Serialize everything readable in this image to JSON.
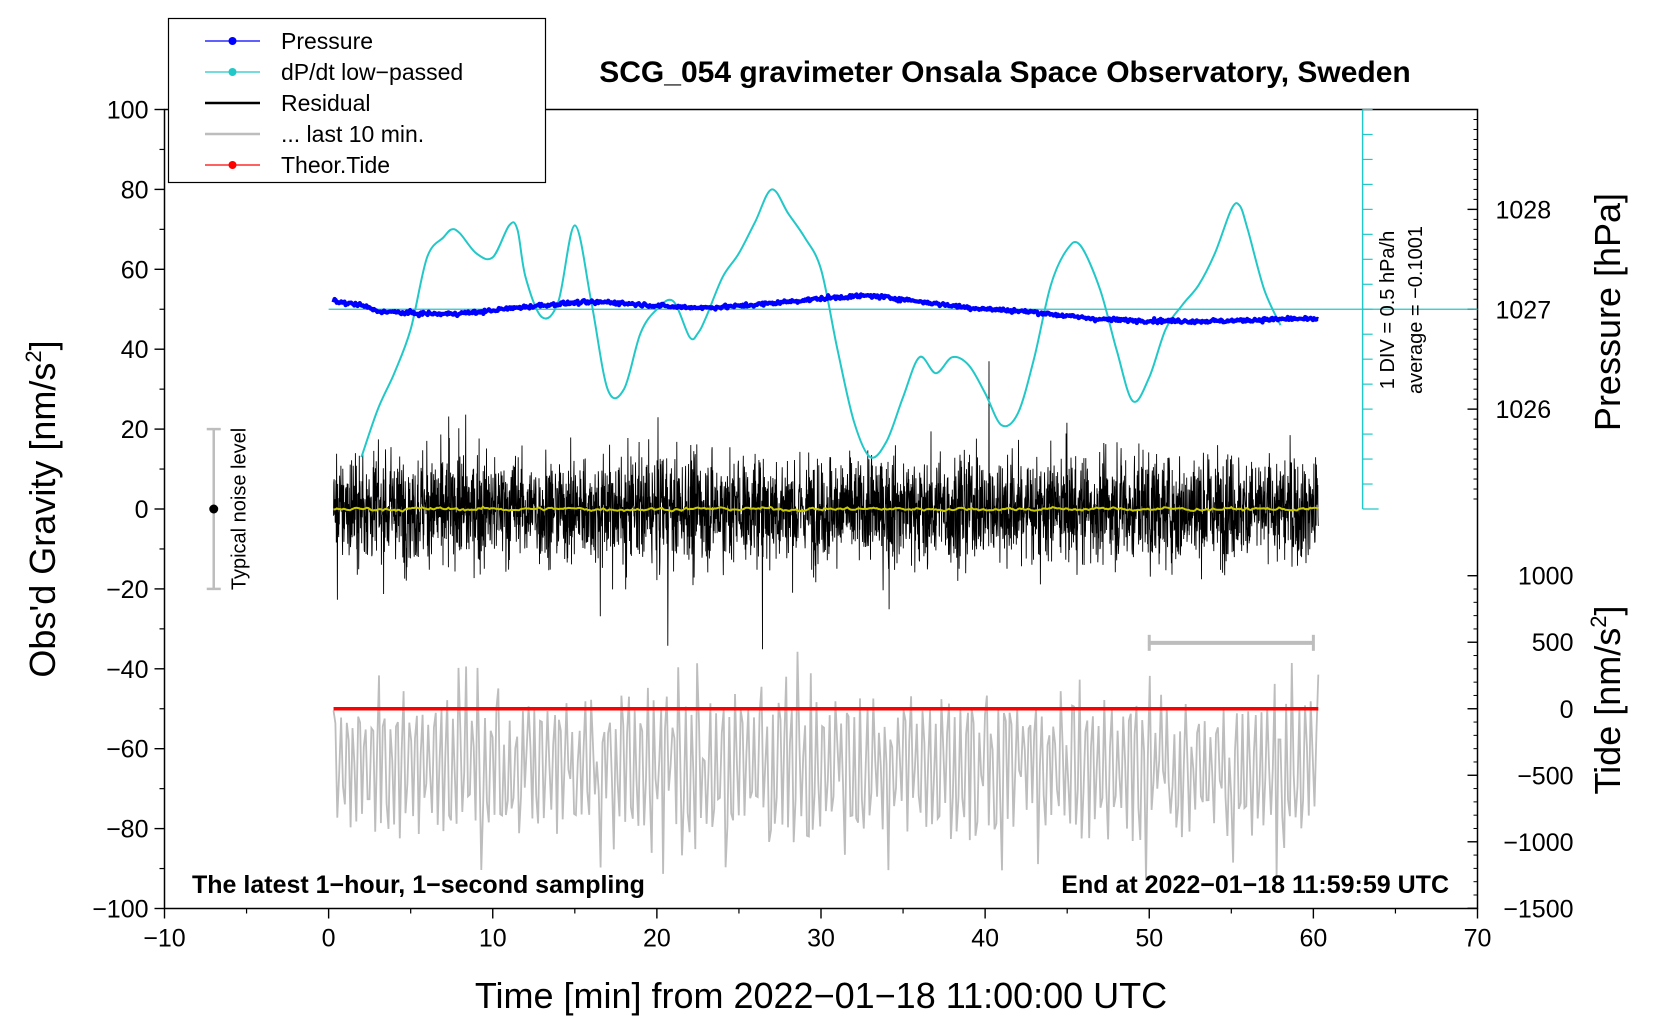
{
  "chart_data": {
    "type": "line",
    "title": "SCG_054 gravimeter Onsala Space Observatory, Sweden",
    "xlabel": "Time [min] from 2022−01−18 11:00:00 UTC",
    "ylabel_left": "Obs'd Gravity [nm/s",
    "ylabel_left_sup": "2",
    "ylabel_left_end": "]",
    "ylabel_right_top": "Pressure [hPa]",
    "ylabel_right_bottom": "Tide [nm/s",
    "ylabel_right_bottom_sup": "2",
    "ylabel_right_bottom_end": "]",
    "xlim": [
      -10,
      70
    ],
    "ylim": [
      -100,
      100
    ],
    "x_ticks": [
      -10,
      0,
      10,
      20,
      30,
      40,
      50,
      60,
      70
    ],
    "x_tick_labels": [
      "−10",
      "0",
      "10",
      "20",
      "30",
      "40",
      "50",
      "60",
      "70"
    ],
    "y_ticks": [
      -100,
      -80,
      -60,
      -40,
      -20,
      0,
      20,
      40,
      60,
      80,
      100
    ],
    "y_tick_labels": [
      "−100",
      "−80",
      "−60",
      "−40",
      "−20",
      "0",
      "20",
      "40",
      "60",
      "80",
      "100"
    ],
    "pressure_axis": {
      "ticks": [
        1026,
        1027,
        1028
      ],
      "tick_labels": [
        "1026",
        "1027",
        "1028"
      ],
      "tick_positions_gravity_units": [
        25,
        50,
        75
      ]
    },
    "tide_axis": {
      "ticks": [
        -1500,
        -1000,
        -500,
        0,
        500,
        1000
      ],
      "tick_labels": [
        "−1500",
        "−1000",
        "−500",
        "0",
        "500",
        "1000"
      ],
      "gravity_at_zero": -50,
      "gravity_per_unit": 0.0333
    },
    "legend": {
      "position": "top-left",
      "entries": [
        {
          "label": "Pressure",
          "color": "#0000ff",
          "style": "line-dot"
        },
        {
          "label": "dP/dt low−passed",
          "color": "#22c8c8",
          "style": "line-dot"
        },
        {
          "label": "Residual",
          "color": "#000000",
          "style": "line"
        },
        {
          "label": "... last 10 min.",
          "color": "#bdbdbd",
          "style": "line"
        },
        {
          "label": "Theor.Tide",
          "color": "#ff0000",
          "style": "line-dot"
        }
      ]
    },
    "series": [
      {
        "name": "Pressure",
        "color": "#0000ff",
        "unit": "gravity-axis",
        "x": [
          0.3,
          2,
          3,
          5,
          7,
          9,
          11,
          13,
          15,
          17,
          19,
          21,
          23,
          25,
          27,
          29,
          31,
          33,
          35,
          37,
          39,
          41,
          43,
          45,
          47,
          49,
          51,
          53,
          55,
          57,
          59,
          60.3
        ],
        "y": [
          52,
          51,
          49.5,
          49,
          48.8,
          49.2,
          50.2,
          51,
          51.6,
          51.8,
          51.2,
          50.6,
          50.4,
          50.8,
          51.5,
          52.3,
          53,
          53.4,
          52.5,
          51.4,
          50.4,
          49.8,
          49.3,
          48.3,
          47.5,
          47.2,
          47.1,
          47,
          47.1,
          47.4,
          47.6,
          47.4
        ]
      },
      {
        "name": "dP/dt low−passed",
        "color": "#22c8c8",
        "unit": "gravity-axis",
        "x": [
          2,
          3,
          4,
          5,
          6,
          7,
          7.5,
          8,
          9,
          10,
          11,
          11.5,
          12,
          13,
          14,
          15,
          16,
          17,
          18,
          19,
          20,
          21,
          22,
          22.5,
          23,
          24,
          25,
          26,
          27,
          28,
          29,
          30,
          31,
          32,
          33,
          34,
          35,
          36,
          37,
          38,
          39,
          40,
          41,
          42,
          43,
          44,
          45,
          45.8,
          47,
          48,
          49,
          50,
          51,
          52,
          53,
          54,
          55,
          55.5,
          56,
          57,
          58
        ],
        "y": [
          13,
          25,
          34,
          45,
          63,
          68,
          70,
          69,
          64,
          63,
          71,
          70,
          58,
          48,
          52,
          71,
          52,
          30,
          30,
          44,
          50,
          52,
          43,
          44,
          48,
          58,
          64,
          72,
          80,
          74,
          68,
          60,
          40,
          22,
          13,
          17,
          28,
          38,
          34,
          38,
          36,
          29,
          21,
          24,
          38,
          56,
          65,
          66,
          55,
          40,
          27,
          33,
          45,
          51,
          56,
          64,
          75,
          76,
          70,
          55,
          46
        ]
      },
      {
        "name": "Residual",
        "color": "#000000",
        "unit": "gravity-axis",
        "x_range": [
          0.3,
          60.3
        ],
        "typical_amplitude": 10,
        "min": -38,
        "max": 37
      },
      {
        "name": "Residual smoothed",
        "color": "#c8c800",
        "unit": "gravity-axis",
        "x_range": [
          0.3,
          60.3
        ],
        "mean": 0,
        "amplitude": 1.5
      },
      {
        "name": "... last 10 min.",
        "color": "#bdbdbd",
        "unit": "gravity-axis",
        "x_range": [
          0.3,
          60.3
        ],
        "baseline": -65,
        "min": -100,
        "max": -32
      },
      {
        "name": "Theor.Tide",
        "color": "#ff0000",
        "unit": "tide nm/s²",
        "x_range": [
          0.3,
          60.3
        ],
        "value": 0
      }
    ],
    "annotations": {
      "dpdt_scale": {
        "text1": "1 DIV = 0.5 hPa/h",
        "text2": "average = −0.1001",
        "x": 63,
        "y_range": [
          0,
          100
        ],
        "baseline_y": 50,
        "div_step": 6.25
      },
      "noise_bar": {
        "text": "Typical noise level",
        "x": -7,
        "y_range": [
          -20,
          20
        ]
      },
      "last10_bracket": {
        "x_range": [
          50,
          60
        ],
        "y": -33.5
      },
      "bottom_left_text": "The latest 1−hour, 1−second sampling",
      "bottom_right_text": "End at 2022−01−18 11:59:59 UTC"
    },
    "grid": false
  }
}
